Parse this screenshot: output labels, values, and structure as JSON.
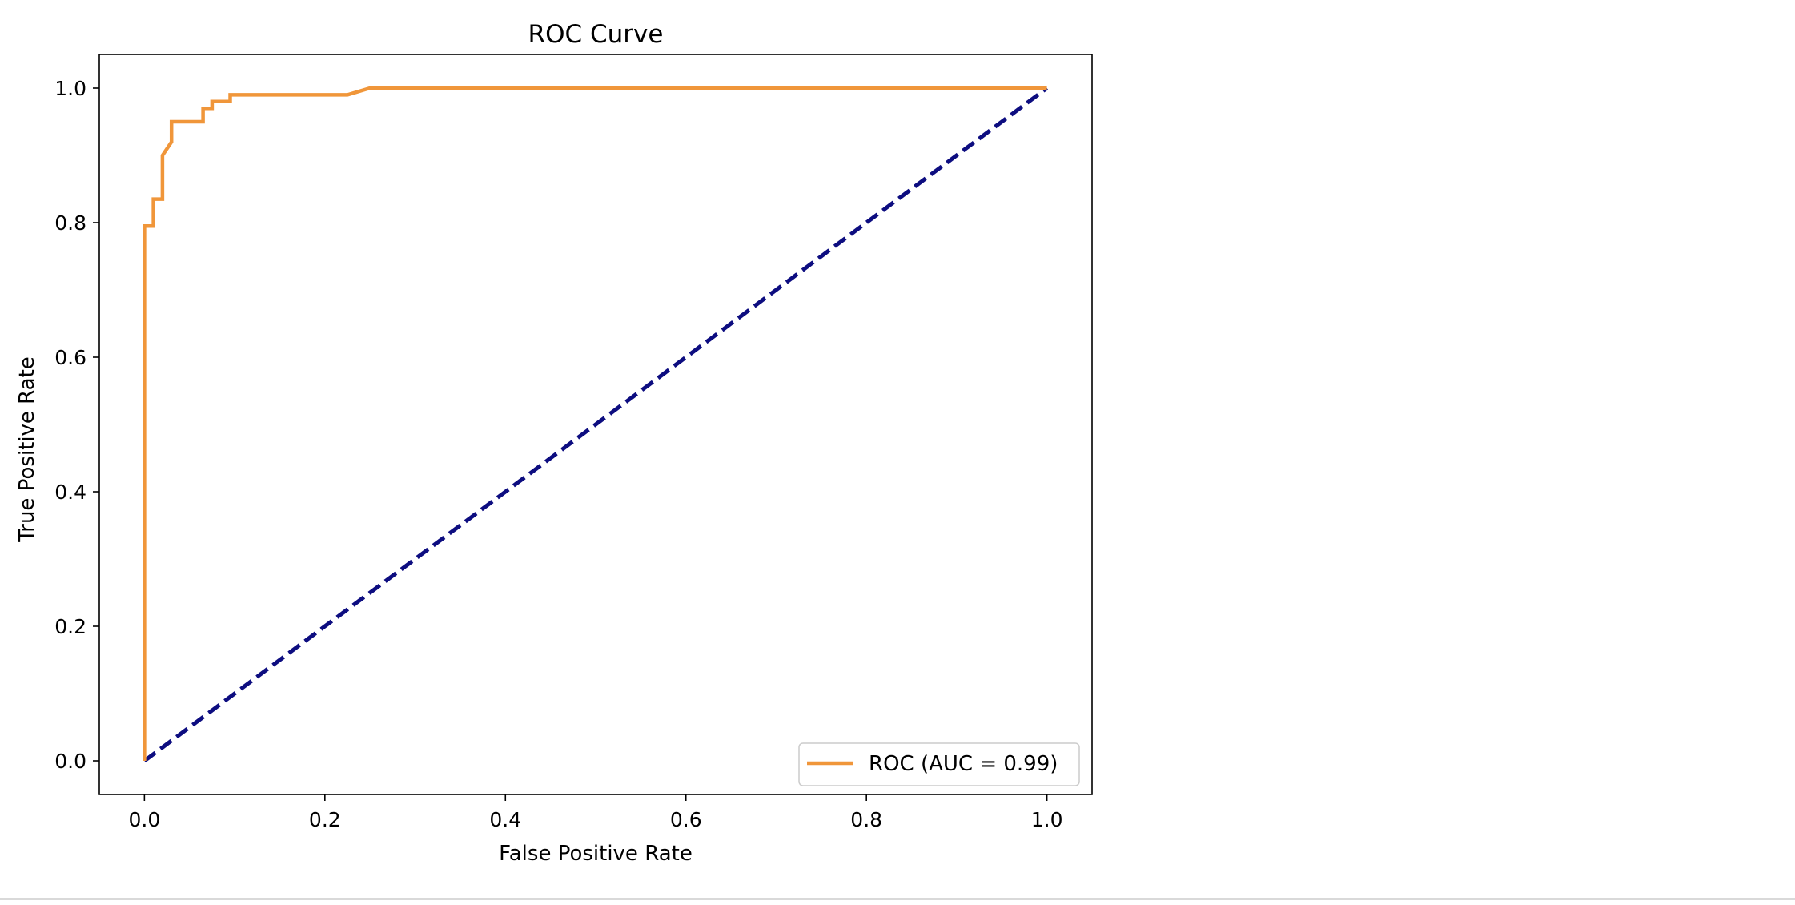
{
  "chart_data": {
    "type": "line",
    "title": "ROC Curve",
    "xlabel": "False Positive Rate",
    "ylabel": "True Positive Rate",
    "xlim": [
      -0.05,
      1.05
    ],
    "ylim": [
      -0.05,
      1.05
    ],
    "xticks": [
      "0.0",
      "0.2",
      "0.4",
      "0.6",
      "0.8",
      "1.0"
    ],
    "yticks": [
      "0.0",
      "0.2",
      "0.4",
      "0.6",
      "0.8",
      "1.0"
    ],
    "grid": false,
    "legend": {
      "placement": "lower-right",
      "entries": [
        "ROC (AUC = 0.99)"
      ]
    },
    "series": [
      {
        "name": "ROC (AUC = 0.99)",
        "color": "#f0963a",
        "style": "solid",
        "x": [
          0.0,
          0.0,
          0.0,
          0.01,
          0.01,
          0.02,
          0.02,
          0.03,
          0.03,
          0.065,
          0.065,
          0.075,
          0.075,
          0.095,
          0.095,
          0.225,
          0.25,
          1.0
        ],
        "y": [
          0.0,
          0.79,
          0.795,
          0.795,
          0.835,
          0.835,
          0.9,
          0.92,
          0.95,
          0.95,
          0.97,
          0.97,
          0.98,
          0.98,
          0.99,
          0.99,
          1.0,
          1.0
        ]
      },
      {
        "name": "",
        "color": "#0d0d80",
        "style": "dashed",
        "x": [
          0.0,
          1.0
        ],
        "y": [
          0.0,
          1.0
        ]
      }
    ]
  }
}
